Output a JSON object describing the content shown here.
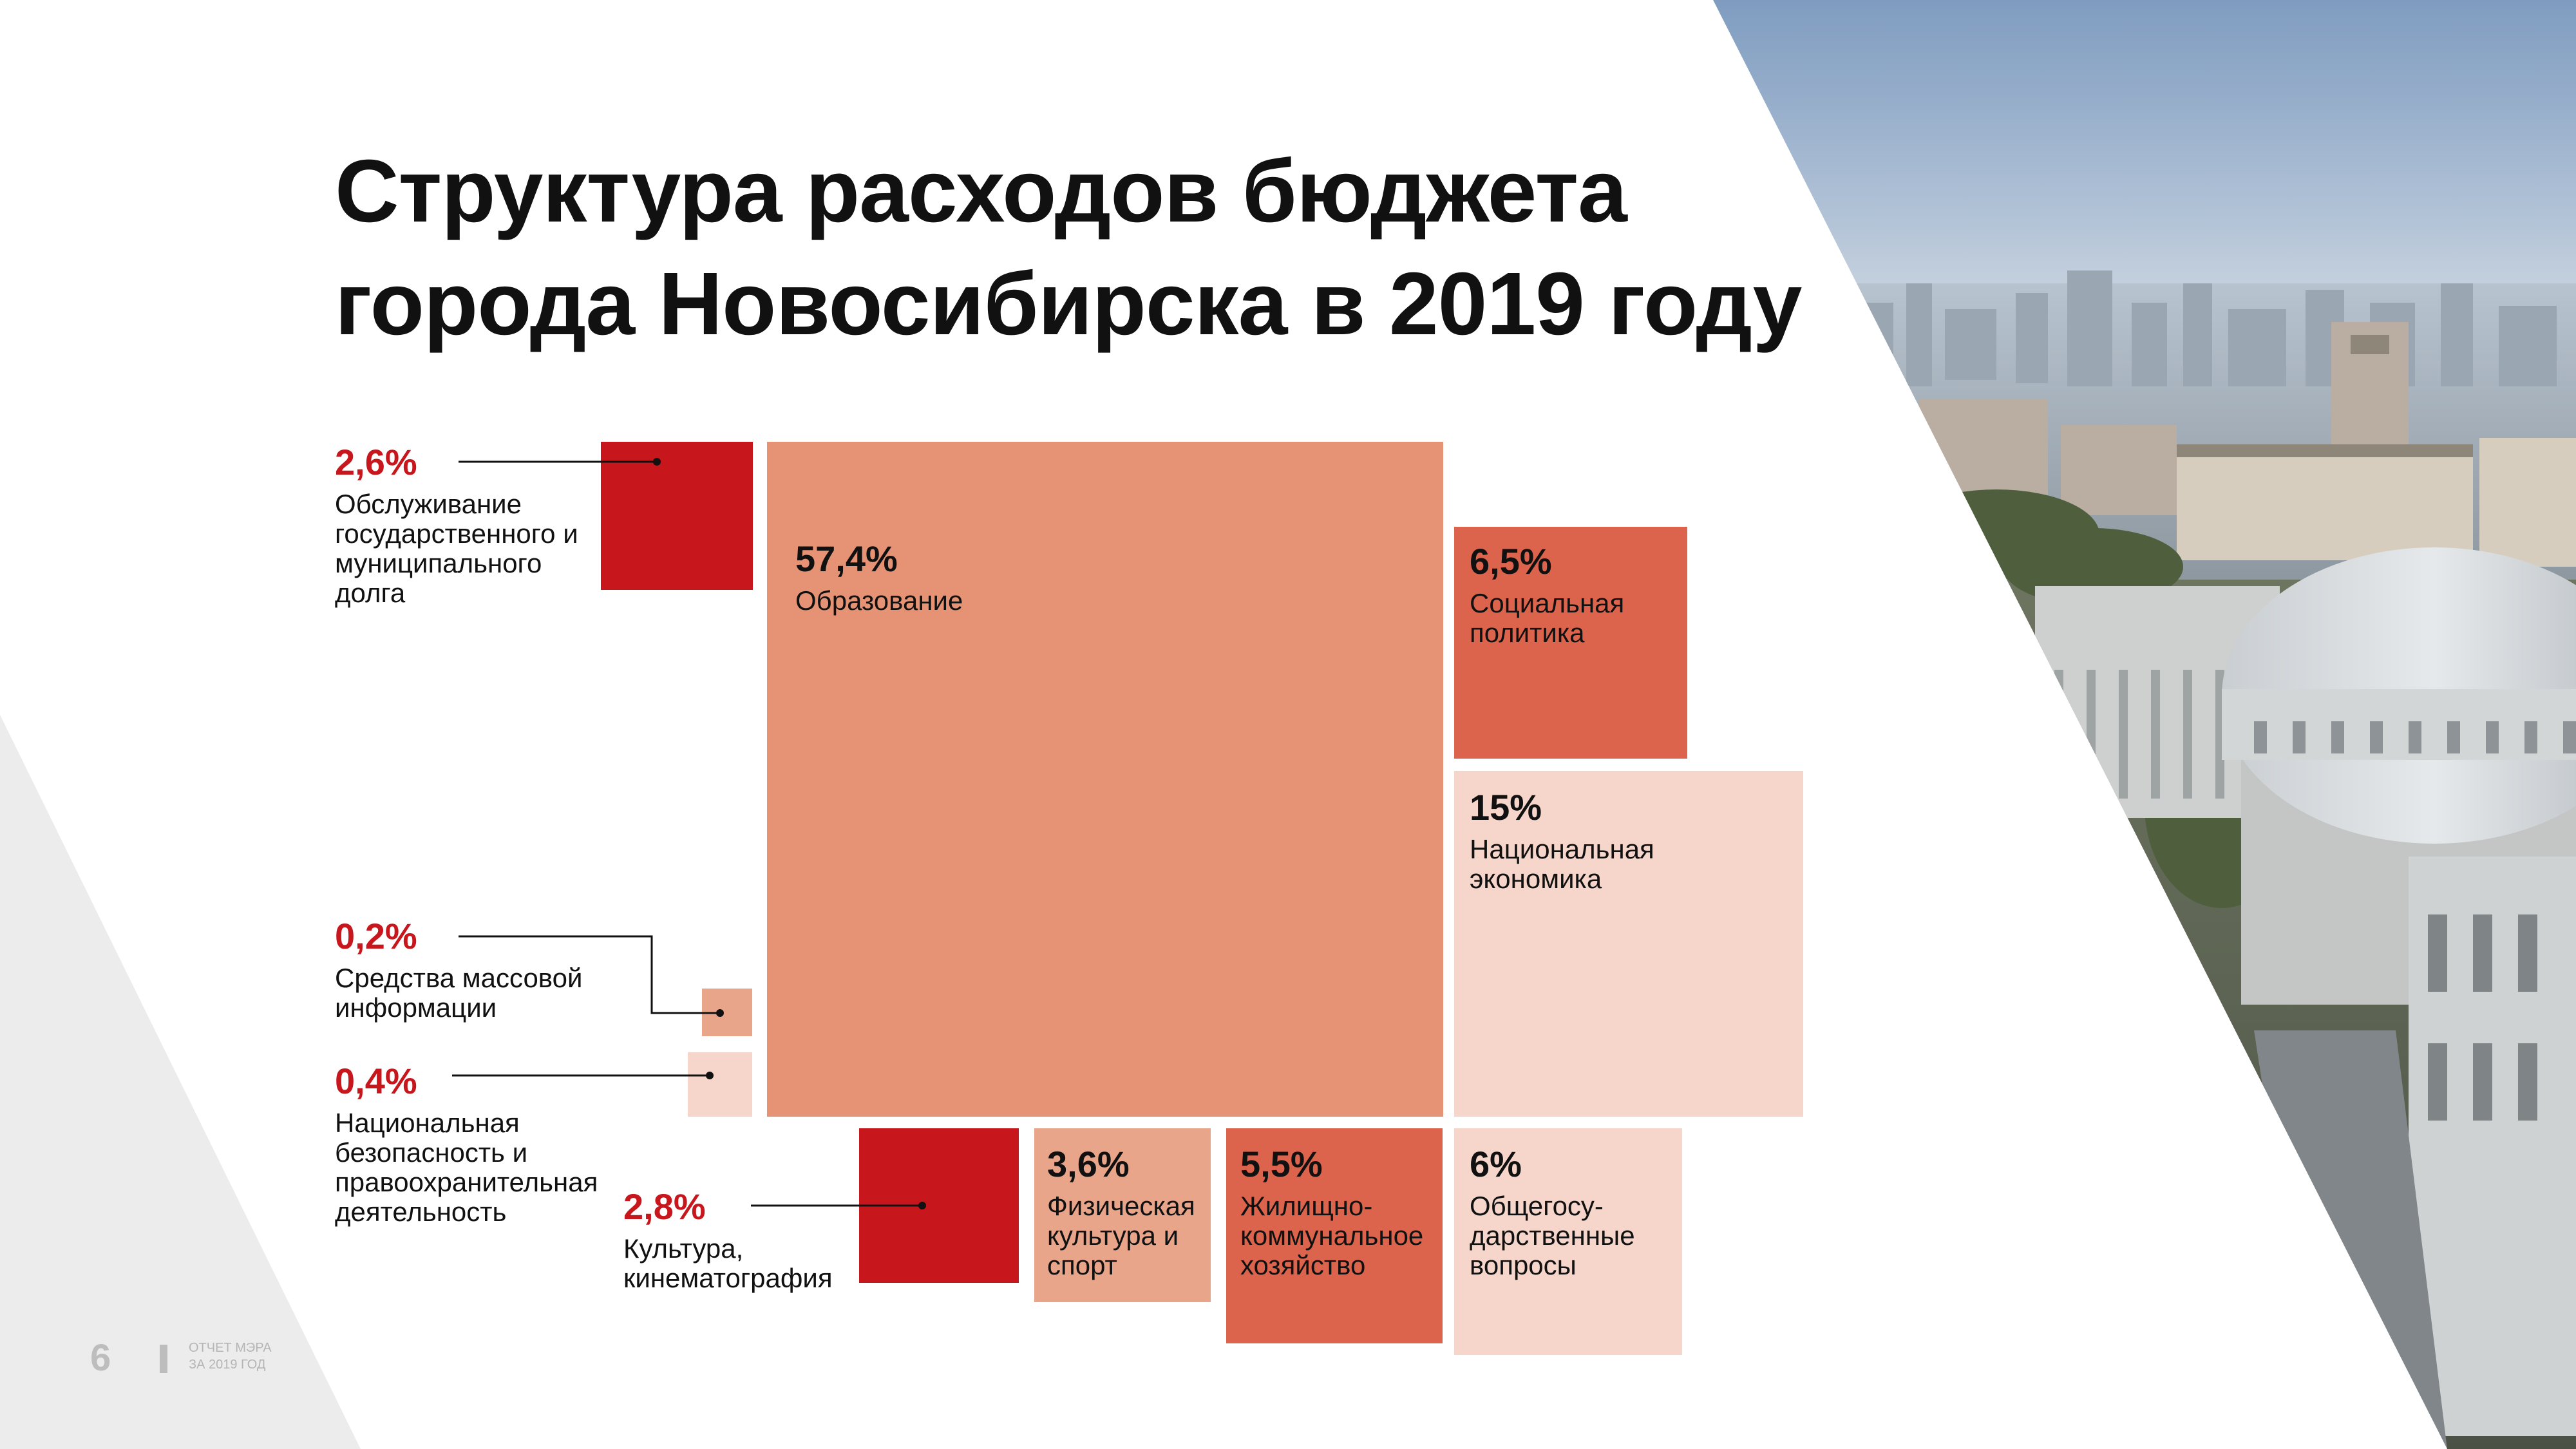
{
  "title_lines": [
    "Структура расходов бюджета",
    "города Новосибирска в 2019 году"
  ],
  "footer": {
    "page_number": "6",
    "report_line1": "ОТЧЕТ МЭРА",
    "report_line2": "ЗА 2019 ГОД"
  },
  "colors": {
    "red": "#c8161d",
    "salmon": "#e59374",
    "coral": "#dd644c",
    "light_salmon": "#e9a58a",
    "pale": "#f6d6ca",
    "text": "#111111",
    "footer_gray": "#bdbdbd"
  },
  "chart_data": {
    "type": "treemap",
    "unit": "%",
    "items": [
      {
        "key": "education",
        "value": 57.4,
        "pct_label": "57,4%",
        "label": "Образование",
        "color": "salmon"
      },
      {
        "key": "national_economy",
        "value": 15,
        "pct_label": "15%",
        "label": "Национальная экономика",
        "color": "pale"
      },
      {
        "key": "social_policy",
        "value": 6.5,
        "pct_label": "6,5%",
        "label": "Социальная политика",
        "color": "coral"
      },
      {
        "key": "general_state",
        "value": 6,
        "pct_label": "6%",
        "label": "Общегосу- дарственные вопросы",
        "color": "pale"
      },
      {
        "key": "housing",
        "value": 5.5,
        "pct_label": "5,5%",
        "label": "Жилищно- коммунальное хозяйство",
        "color": "coral"
      },
      {
        "key": "sport",
        "value": 3.6,
        "pct_label": "3,6%",
        "label": "Физическая культура и спорт",
        "color": "light_salmon"
      },
      {
        "key": "culture",
        "value": 2.8,
        "pct_label": "2,8%",
        "label": "Культура, кинематография",
        "color": "red"
      },
      {
        "key": "debt",
        "value": 2.6,
        "pct_label": "2,6%",
        "label": "Обслуживание государственного и муниципального долга",
        "color": "red"
      },
      {
        "key": "security",
        "value": 0.4,
        "pct_label": "0,4%",
        "label": "Национальная безопасность и правоохранительная деятельность",
        "color": "pale"
      },
      {
        "key": "media",
        "value": 0.2,
        "pct_label": "0,2%",
        "label": "Средства массовой информации",
        "color": "light_salmon"
      }
    ]
  }
}
